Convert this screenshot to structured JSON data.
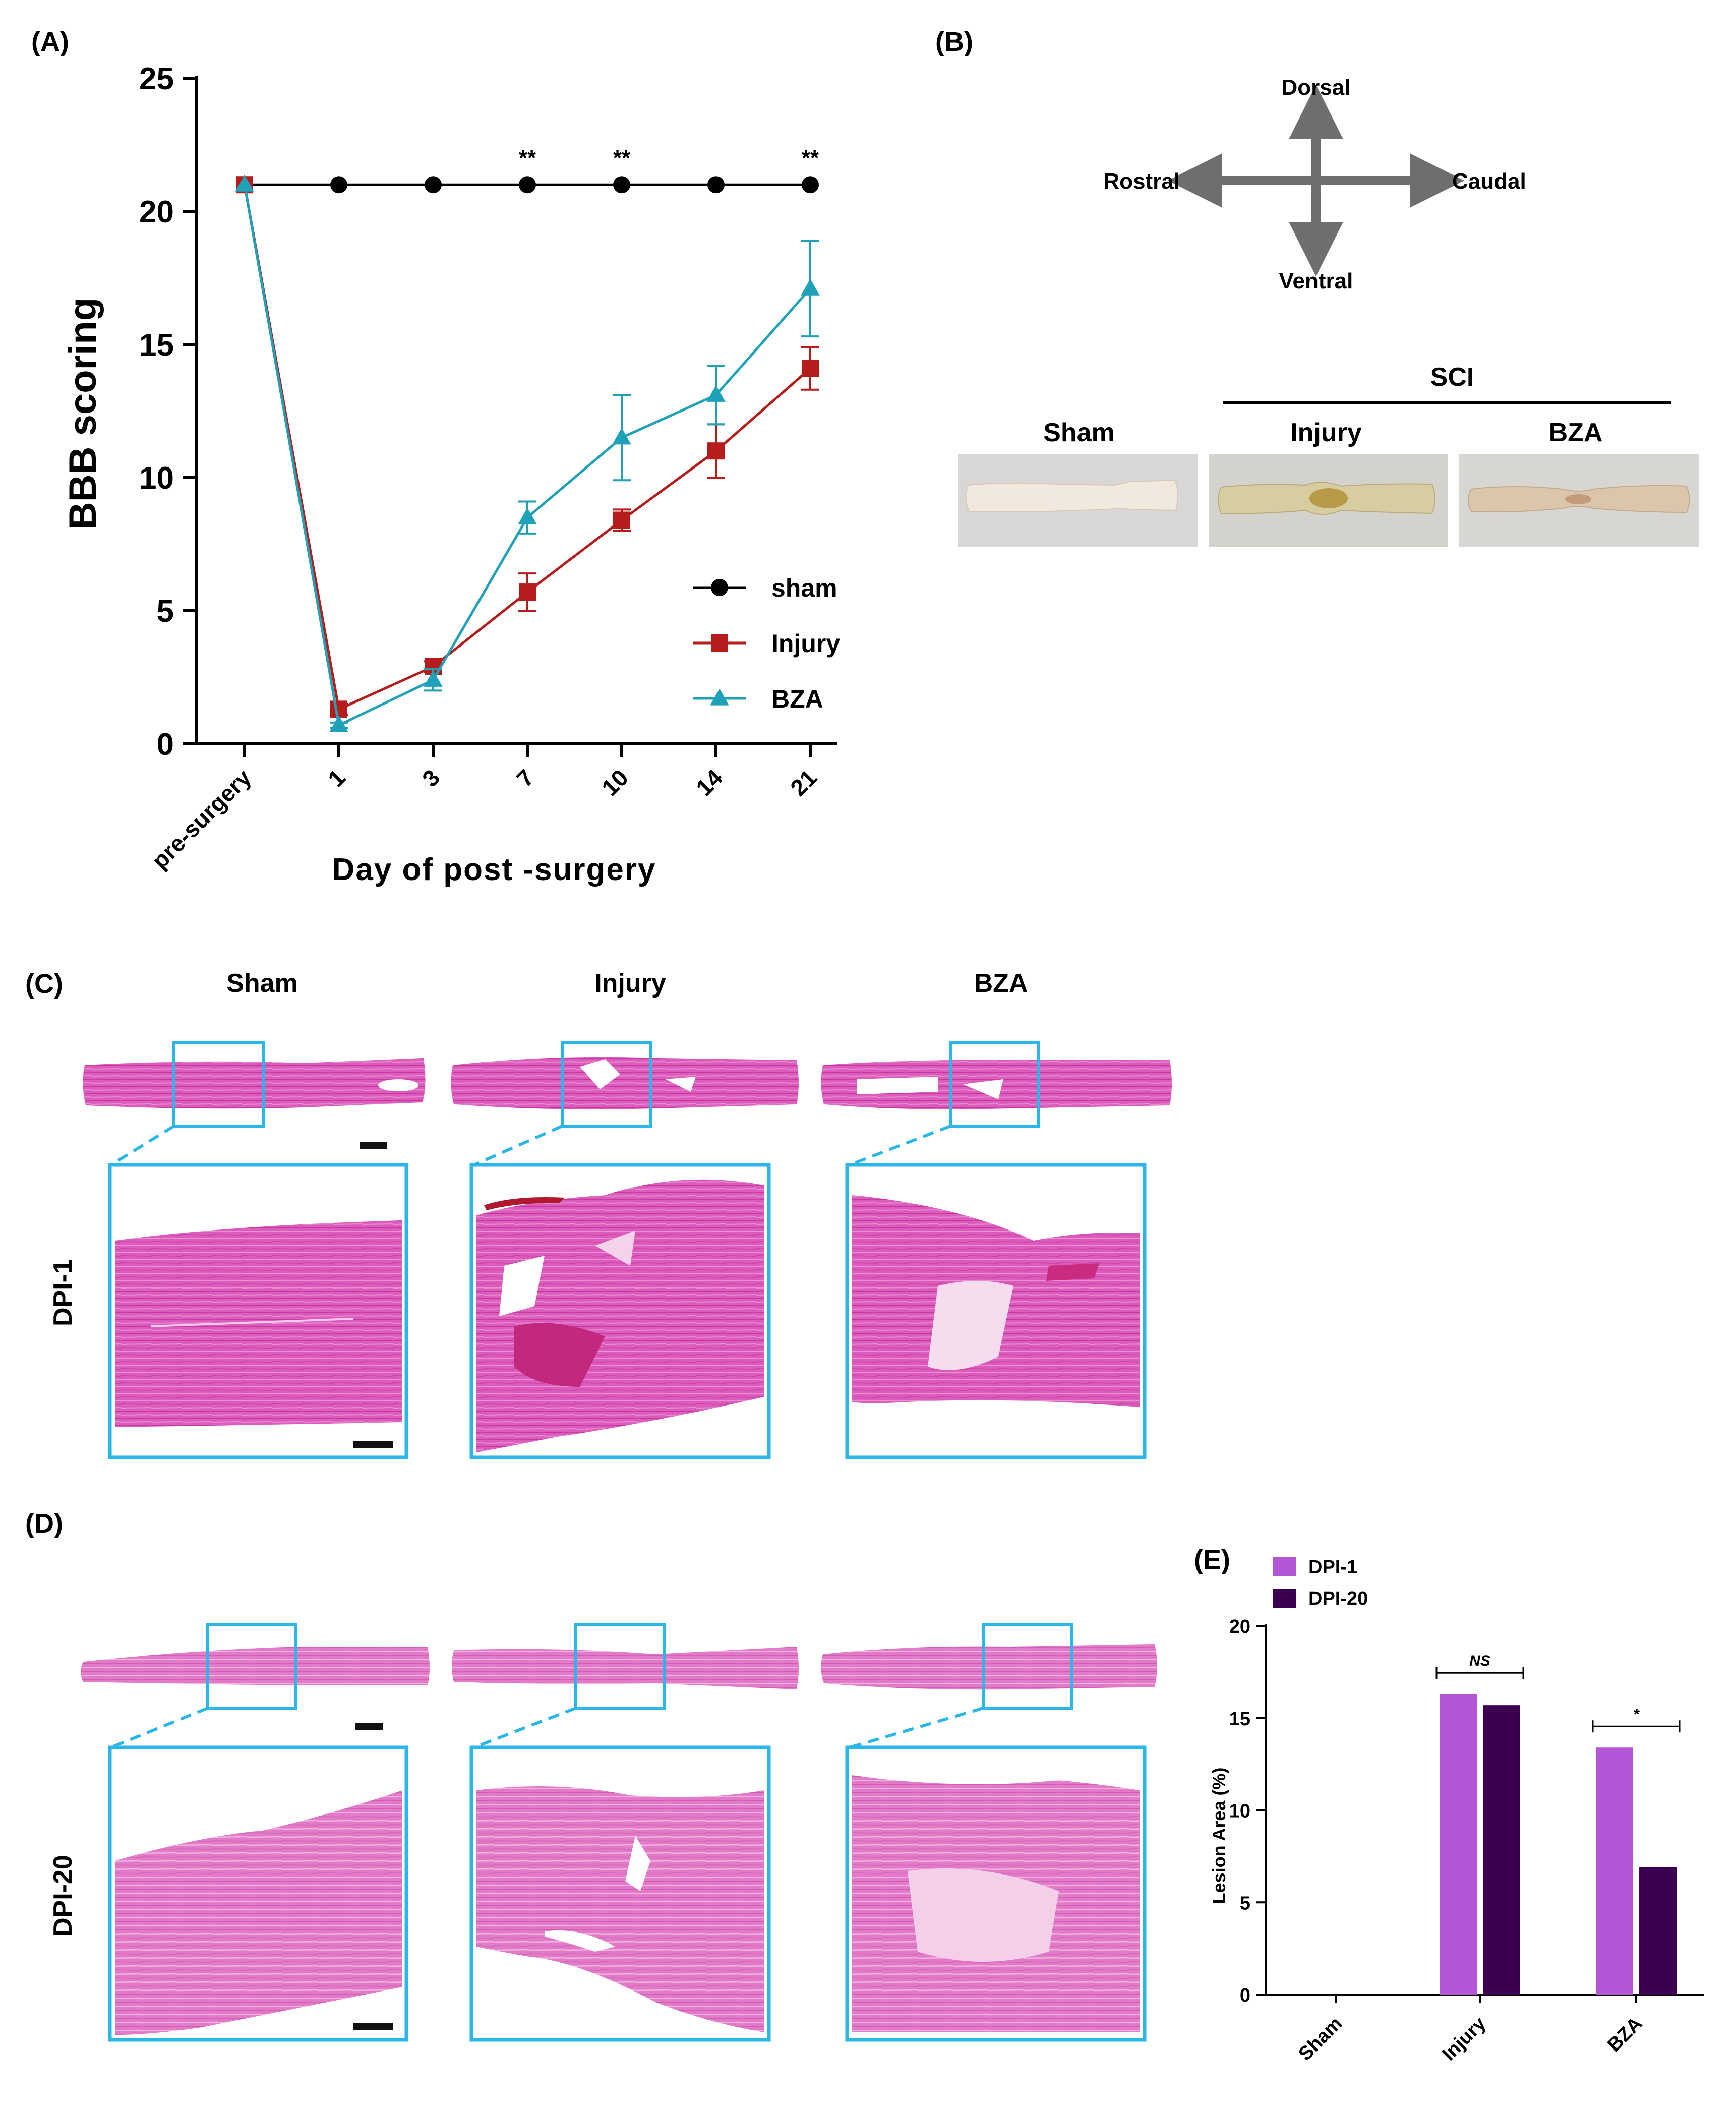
{
  "panels": {
    "a": {
      "label": "(A)"
    },
    "b": {
      "label": "(B)"
    },
    "c": {
      "label": "(C)"
    },
    "d": {
      "label": "(D)"
    },
    "e": {
      "label": "(E)"
    }
  },
  "orientation": {
    "dorsal": "Dorsal",
    "ventral": "Ventral",
    "rostral": "Rostral",
    "caudal": "Caudal"
  },
  "gross_photos": {
    "group_header": "SCI",
    "columns": [
      "Sham",
      "Injury",
      "BZA"
    ],
    "colors": {
      "sham": "#efe6dc",
      "injury": "#d6cba2",
      "bza": "#dccab2",
      "background": "#d8d6d4"
    }
  },
  "histology": {
    "columns": [
      "Sham",
      "Injury",
      "BZA"
    ],
    "rows": [
      "DPI-1",
      "DPI-20"
    ],
    "frame_color": "#29b6e8",
    "stain_color": "#d94fb5"
  },
  "chart_data": [
    {
      "type": "line",
      "title": "",
      "xlabel": "Day of post -surgery",
      "ylabel": "BBB scoring",
      "categories": [
        "pre-surgery",
        "1",
        "3",
        "7",
        "10",
        "14",
        "21"
      ],
      "ylim": [
        0,
        25
      ],
      "yticks": [
        0,
        5,
        10,
        15,
        20,
        25
      ],
      "legend_position": "lower-right",
      "series": [
        {
          "name": "sham",
          "color": "#000000",
          "marker": "circle",
          "values": [
            21,
            21,
            21,
            21,
            21,
            21,
            21
          ],
          "errors": [
            0,
            0,
            0,
            0,
            0,
            0,
            0
          ]
        },
        {
          "name": "Injury",
          "color": "#b71c1c",
          "marker": "square",
          "values": [
            21,
            1.3,
            2.9,
            5.7,
            8.4,
            11.0,
            14.1
          ],
          "errors": [
            0,
            0.2,
            0.2,
            0.7,
            0.4,
            1.0,
            0.8
          ]
        },
        {
          "name": "BZA",
          "color": "#1fa2b8",
          "marker": "triangle",
          "values": [
            21,
            0.7,
            2.4,
            8.5,
            11.5,
            13.1,
            17.1
          ],
          "errors": [
            0,
            0.1,
            0.4,
            0.6,
            1.6,
            1.1,
            1.8
          ]
        }
      ],
      "annotations": [
        {
          "category": "7",
          "text": "**"
        },
        {
          "category": "10",
          "text": "**"
        },
        {
          "category": "21",
          "text": "**"
        }
      ]
    },
    {
      "type": "bar",
      "title": "",
      "xlabel": "",
      "ylabel": "Lesion Area  (%)",
      "categories": [
        "Sham",
        "Injury",
        "BZA"
      ],
      "ylim": [
        0,
        20
      ],
      "yticks": [
        0,
        5,
        10,
        15,
        20
      ],
      "legend_position": "top-left",
      "series": [
        {
          "name": "DPI-1",
          "color": "#b455d6",
          "values": [
            0,
            16.3,
            13.4
          ]
        },
        {
          "name": "DPI-20",
          "color": "#3d0050",
          "values": [
            0,
            15.7,
            6.9
          ]
        }
      ],
      "significance": [
        {
          "category": "Injury",
          "text": "NS"
        },
        {
          "category": "BZA",
          "text": "*"
        }
      ]
    }
  ]
}
